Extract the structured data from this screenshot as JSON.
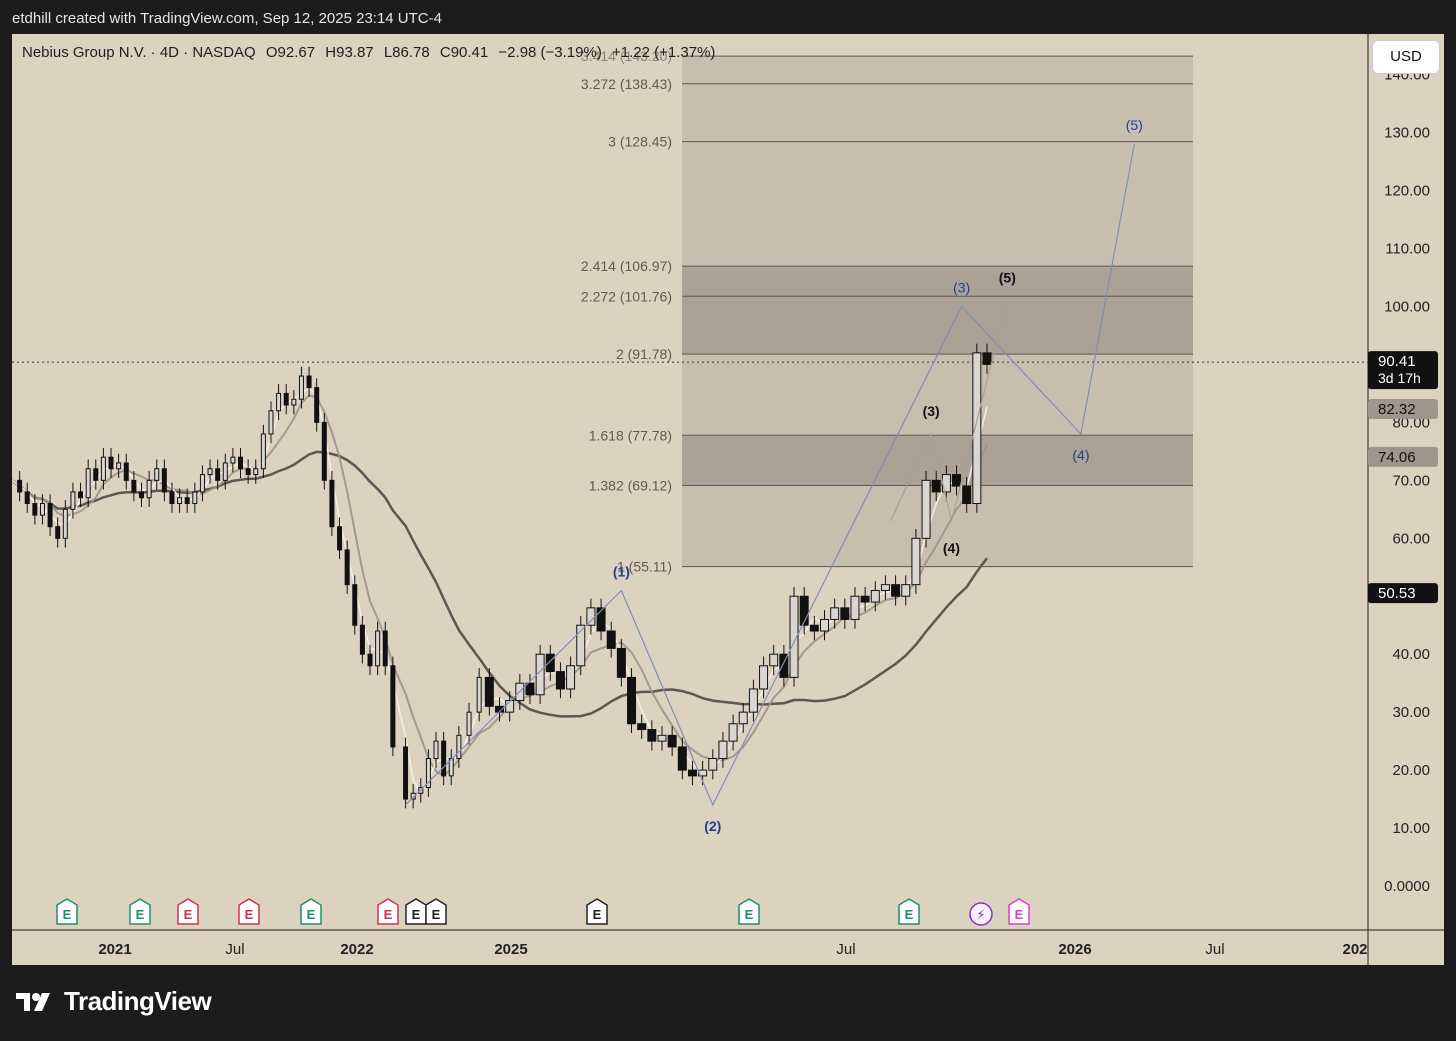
{
  "header": {
    "attribution": "etdhill created with TradingView.com, Sep 12, 2025 23:14 UTC-4"
  },
  "legend": {
    "symbol": "Nebius Group N.V. · 4D · NASDAQ",
    "open": "O92.67",
    "high": "H93.87",
    "low": "L86.78",
    "close": "C90.41",
    "change": "−2.98 (−3.19%)",
    "extra": "+1.22 (+1.37%)",
    "hidden_fib": "3.414 (143.20)"
  },
  "currency_button": "USD",
  "brand": {
    "name": "TradingView"
  },
  "colors": {
    "background": "#dbd3c0",
    "fib_band": "#c3bcac",
    "fib_band_dark": "#9d968a",
    "wave_label_blue": "#1f3f8f",
    "earnings_green": "#1f8f6a",
    "earnings_red": "#d32f4f",
    "dividend_purple": "#8c2fc9",
    "split_pink": "#d63fd6"
  },
  "chart_data": {
    "type": "candlestick",
    "symbol": "NBIS",
    "timeframe": "4D",
    "y_axis": {
      "ticks": [
        "0.0000",
        "10.00",
        "20.00",
        "30.00",
        "40.00",
        "50.00",
        "60.00",
        "70.00",
        "80.00",
        "90.00",
        "100.00",
        "110.00",
        "120.00",
        "130.00",
        "140.00"
      ],
      "ylim": [
        0,
        140
      ]
    },
    "x_axis": {
      "ticks": [
        "2021",
        "Jul",
        "2022",
        "2025",
        "Jul",
        "2026",
        "Jul",
        "202"
      ]
    },
    "price_labels": [
      {
        "value": "90.41",
        "sub": "3d 17h",
        "kind": "last"
      },
      {
        "value": "82.32",
        "kind": "ma_short"
      },
      {
        "value": "74.06",
        "kind": "ma_mid"
      },
      {
        "value": "50.53",
        "kind": "ma_long"
      }
    ],
    "fib_extension": [
      {
        "ratio": "1",
        "price": 55.11,
        "label": "1 (55.11)"
      },
      {
        "ratio": "1.382",
        "price": 69.12,
        "label": "1.382 (69.12)"
      },
      {
        "ratio": "1.618",
        "price": 77.78,
        "label": "1.618 (77.78)"
      },
      {
        "ratio": "2",
        "price": 91.78,
        "label": "2 (91.78)"
      },
      {
        "ratio": "2.272",
        "price": 101.76,
        "label": "2.272 (101.76)"
      },
      {
        "ratio": "2.414",
        "price": 106.97,
        "label": "2.414 (106.97)"
      },
      {
        "ratio": "3",
        "price": 128.45,
        "label": "3 (128.45)"
      },
      {
        "ratio": "3.272",
        "price": 138.43,
        "label": "3.272 (138.43)"
      },
      {
        "ratio": "3.414",
        "price": 143.2,
        "label": "3.414 (143.20)"
      }
    ],
    "wave_labels_major": [
      {
        "label": "(1)",
        "price": 51
      },
      {
        "label": "(2)",
        "price": 14
      },
      {
        "label": "(3)",
        "price": 100
      },
      {
        "label": "(4)",
        "price": 78
      },
      {
        "label": "(5)",
        "price": 128
      }
    ],
    "wave_labels_minor": [
      {
        "label": "(3)",
        "price": 78
      },
      {
        "label": "(4)",
        "price": 63
      },
      {
        "label": "(5)",
        "price": 101
      }
    ],
    "moving_averages": [
      {
        "name": "long",
        "last": 50.53
      },
      {
        "name": "mid",
        "last": 74.06
      },
      {
        "name": "short",
        "last": 82.32
      }
    ],
    "events": [
      "E",
      "E",
      "E",
      "E",
      "E",
      "E",
      "E",
      "E",
      "E",
      "E",
      "E",
      "⚡",
      "E"
    ]
  }
}
